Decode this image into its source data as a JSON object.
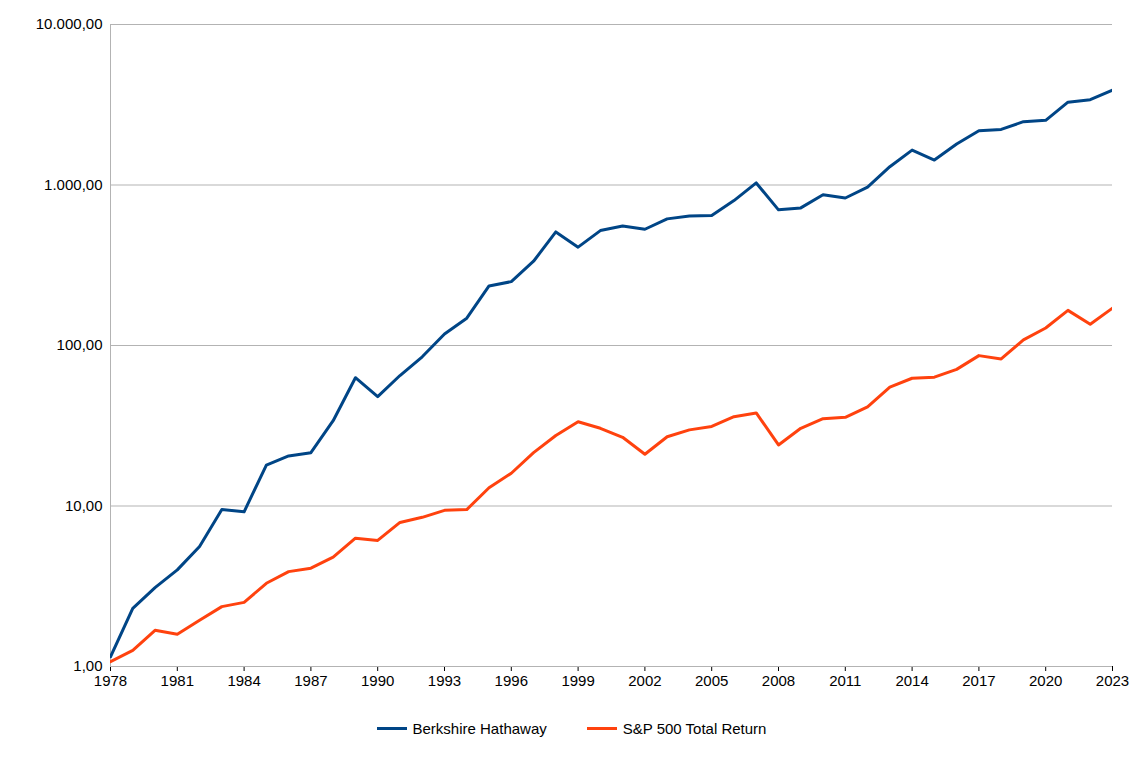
{
  "chart_data": {
    "type": "line",
    "x": [
      1978,
      1979,
      1980,
      1981,
      1982,
      1983,
      1984,
      1985,
      1986,
      1987,
      1988,
      1989,
      1990,
      1991,
      1992,
      1993,
      1994,
      1995,
      1996,
      1997,
      1998,
      1999,
      2000,
      2001,
      2002,
      2003,
      2004,
      2005,
      2006,
      2007,
      2008,
      2009,
      2010,
      2011,
      2012,
      2013,
      2014,
      2015,
      2016,
      2017,
      2018,
      2019,
      2020,
      2021,
      2022,
      2023
    ],
    "series": [
      {
        "name": "Berkshire Hathaway",
        "color": "#004586",
        "values": [
          1.15,
          2.3,
          3.1,
          4.0,
          5.6,
          9.5,
          9.2,
          18,
          20.5,
          21.5,
          34,
          63,
          48,
          65,
          85,
          118,
          148,
          235,
          250,
          335,
          510,
          410,
          520,
          555,
          530,
          615,
          640,
          645,
          800,
          1030,
          700,
          720,
          870,
          830,
          970,
          1300,
          1650,
          1430,
          1800,
          2180,
          2220,
          2480,
          2530,
          3280,
          3400,
          3900
        ]
      },
      {
        "name": "S&P 500 Total Return",
        "color": "#ff420e",
        "values": [
          1.07,
          1.26,
          1.68,
          1.59,
          1.94,
          2.36,
          2.51,
          3.3,
          3.9,
          4.1,
          4.8,
          6.3,
          6.1,
          7.9,
          8.5,
          9.4,
          9.5,
          13,
          16,
          21.5,
          27.5,
          33.5,
          30.5,
          26.8,
          21,
          27,
          29.8,
          31.3,
          36,
          38,
          24,
          30.5,
          35,
          35.7,
          41.5,
          55,
          62.5,
          63.5,
          71,
          86.5,
          82.5,
          108.5,
          128.5,
          165.5,
          135.5,
          171
        ]
      }
    ],
    "xlim": [
      1978,
      2023
    ],
    "xticks": [
      1978,
      1981,
      1984,
      1987,
      1990,
      1993,
      1996,
      1999,
      2002,
      2005,
      2008,
      2011,
      2014,
      2017,
      2020,
      2023
    ],
    "ylim": [
      1,
      10000
    ],
    "yticks": [
      {
        "value": 1,
        "label": "1,00"
      },
      {
        "value": 10,
        "label": "10,00"
      },
      {
        "value": 100,
        "label": "100,00"
      },
      {
        "value": 1000,
        "label": "1.000,00"
      },
      {
        "value": 10000,
        "label": "10.000,00"
      }
    ],
    "log": "y",
    "grid": true,
    "legend": "bottom"
  }
}
